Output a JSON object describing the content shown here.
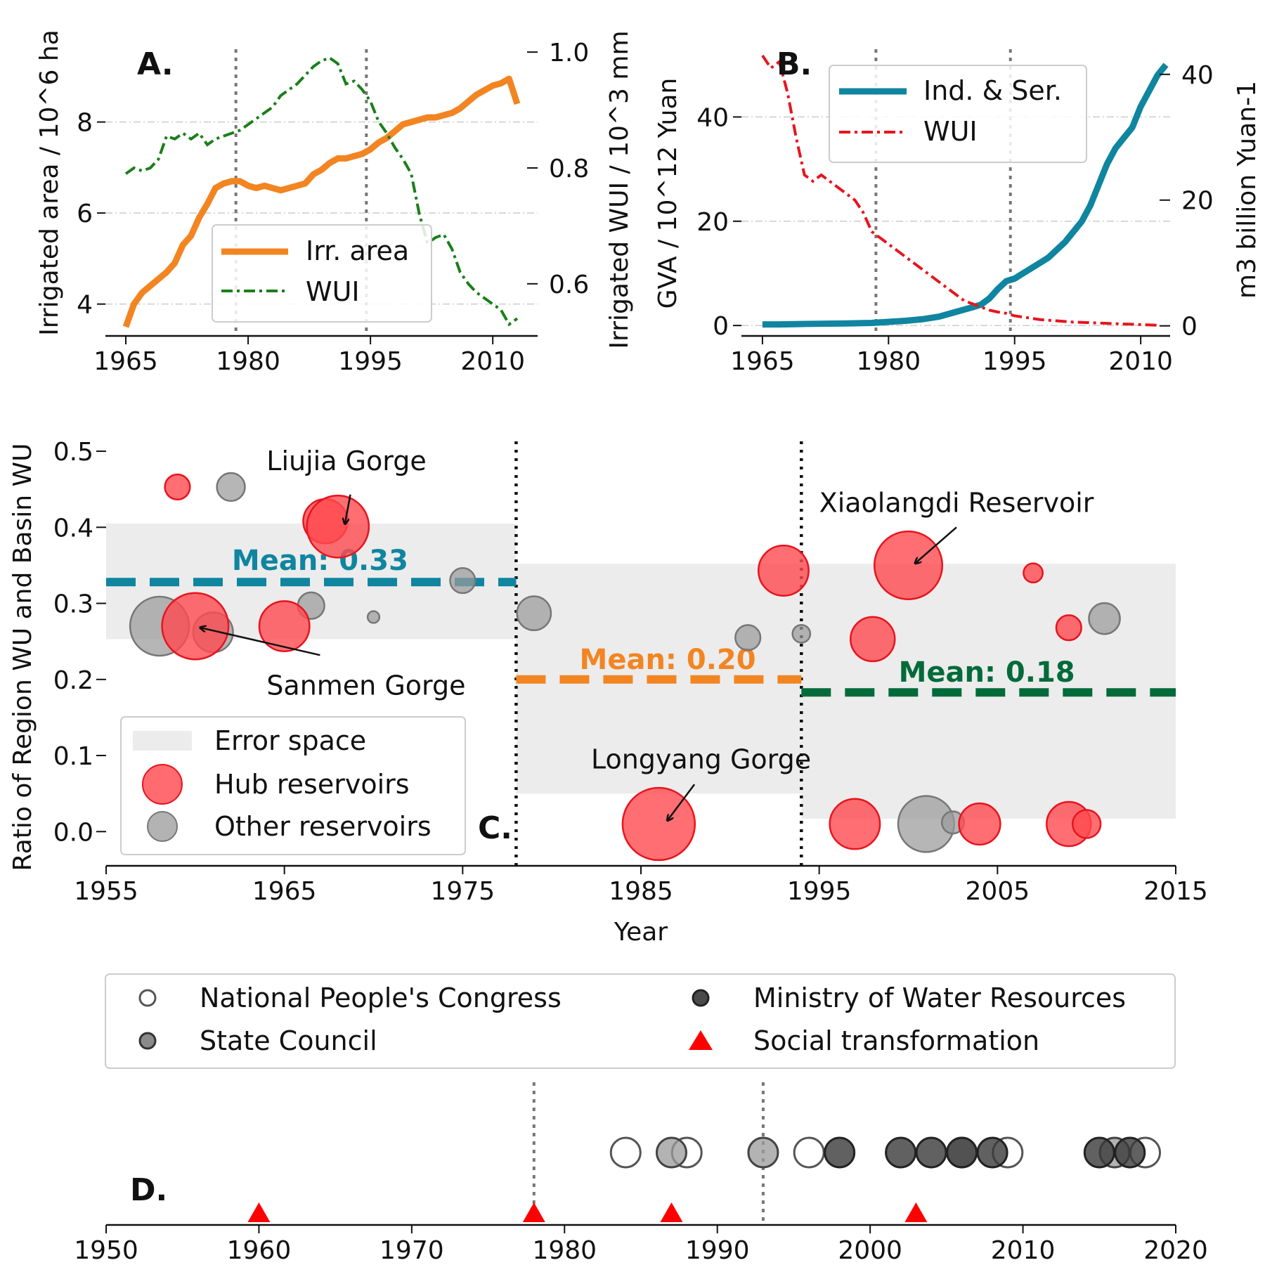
{
  "colors": {
    "orange": "#f28522",
    "green": "#1a7f1a",
    "teal": "#0f85a0",
    "red": "#e8141e",
    "darkgreen": "#036b3a",
    "gray": "#888888",
    "error_space": "#ececec"
  },
  "chart_data": [
    {
      "panel": "A.",
      "type": "line",
      "ylabel": "Irrigated area / 10^6 ha",
      "ylabel_right": "Irrigated WUI / 10^3 mm",
      "xlim": [
        1962.5,
        2015.5
      ],
      "ylim": [
        3.3,
        9.6
      ],
      "ylim_right": [
        0.51,
        1.005
      ],
      "xticks": [
        "1965",
        "1980",
        "1995",
        "2010"
      ],
      "yticks": [
        "4",
        "6",
        "8"
      ],
      "yticks_right": [
        "0.6",
        "0.8",
        "1.0"
      ],
      "vlines": [
        1978.5,
        1994.5
      ],
      "legend_position": "lower-right",
      "series": [
        {
          "name": "Irr. area",
          "axis": "left",
          "x": [
            1965,
            1966,
            1967,
            1968,
            1969,
            1970,
            1971,
            1972,
            1973,
            1974,
            1975,
            1976,
            1977,
            1978,
            1979,
            1980,
            1981,
            1982,
            1983,
            1984,
            1985,
            1986,
            1987,
            1988,
            1989,
            1990,
            1991,
            1992,
            1993,
            1994,
            1995,
            1996,
            1997,
            1998,
            1999,
            2000,
            2001,
            2002,
            2003,
            2004,
            2005,
            2006,
            2007,
            2008,
            2009,
            2010,
            2011,
            2012,
            2013
          ],
          "values": [
            3.5,
            4.0,
            4.25,
            4.4,
            4.55,
            4.7,
            4.9,
            5.3,
            5.5,
            5.9,
            6.2,
            6.55,
            6.65,
            6.7,
            6.7,
            6.6,
            6.55,
            6.6,
            6.55,
            6.5,
            6.55,
            6.6,
            6.65,
            6.85,
            6.95,
            7.1,
            7.2,
            7.2,
            7.25,
            7.3,
            7.4,
            7.55,
            7.65,
            7.8,
            7.95,
            8.0,
            8.05,
            8.1,
            8.1,
            8.15,
            8.2,
            8.3,
            8.45,
            8.6,
            8.7,
            8.8,
            8.85,
            8.95,
            8.4
          ]
        },
        {
          "name": "WUI",
          "axis": "right",
          "x": [
            1965,
            1966,
            1967,
            1968,
            1969,
            1970,
            1971,
            1972,
            1973,
            1974,
            1975,
            1976,
            1977,
            1978,
            1979,
            1980,
            1981,
            1982,
            1983,
            1984,
            1985,
            1986,
            1987,
            1988,
            1989,
            1990,
            1991,
            1992,
            1993,
            1994,
            1995,
            1996,
            1997,
            1998,
            1999,
            2000,
            2001,
            2002,
            2003,
            2004,
            2005,
            2006,
            2007,
            2008,
            2009,
            2010,
            2011,
            2012,
            2013
          ],
          "values": [
            0.79,
            0.8,
            0.795,
            0.8,
            0.815,
            0.855,
            0.85,
            0.86,
            0.85,
            0.86,
            0.84,
            0.85,
            0.855,
            0.86,
            0.865,
            0.875,
            0.885,
            0.895,
            0.905,
            0.925,
            0.935,
            0.945,
            0.96,
            0.975,
            0.985,
            0.99,
            0.98,
            0.945,
            0.95,
            0.935,
            0.915,
            0.88,
            0.86,
            0.835,
            0.815,
            0.79,
            0.72,
            0.67,
            0.68,
            0.685,
            0.66,
            0.62,
            0.6,
            0.585,
            0.575,
            0.565,
            0.555,
            0.53,
            0.54
          ]
        }
      ]
    },
    {
      "panel": "B.",
      "type": "line",
      "ylabel": "GVA / 10^12 Yuan",
      "ylabel_right": "m3 billion Yuan-1",
      "xlim": [
        1962.5,
        2013.5
      ],
      "ylim": [
        -2,
        53
      ],
      "ylim_right": [
        -1.6,
        44
      ],
      "xticks": [
        "1965",
        "1980",
        "1995",
        "2010"
      ],
      "yticks": [
        "0",
        "20",
        "40"
      ],
      "yticks_right": [
        "0",
        "20",
        "40"
      ],
      "vlines": [
        1978.5,
        1994.5
      ],
      "legend_position": "top-center",
      "series": [
        {
          "name": "Ind. & Ser.",
          "axis": "left",
          "x": [
            1965,
            1967,
            1970,
            1975,
            1978,
            1980,
            1982,
            1984,
            1986,
            1988,
            1990,
            1991,
            1992,
            1993,
            1994,
            1995,
            1996,
            1997,
            1998,
            1999,
            2000,
            2001,
            2002,
            2003,
            2004,
            2005,
            2006,
            2007,
            2008,
            2009,
            2010,
            2011,
            2012,
            2013
          ],
          "values": [
            0.2,
            0.2,
            0.3,
            0.4,
            0.5,
            0.7,
            0.9,
            1.2,
            1.7,
            2.6,
            3.5,
            4.0,
            5.2,
            7.0,
            8.5,
            9.0,
            10.0,
            11.0,
            12.0,
            13.0,
            14.5,
            16.0,
            18.0,
            20.0,
            23.0,
            27.0,
            31.0,
            34.0,
            36.0,
            38.0,
            42.0,
            45.0,
            48.0,
            50.0
          ]
        },
        {
          "name": "WUI",
          "axis": "right",
          "x": [
            1965,
            1966,
            1967,
            1968,
            1969,
            1970,
            1971,
            1972,
            1973,
            1974,
            1975,
            1976,
            1977,
            1978,
            1979,
            1980,
            1981,
            1982,
            1983,
            1984,
            1985,
            1986,
            1987,
            1988,
            1989,
            1990,
            1991,
            1992,
            1993,
            1994,
            1995,
            1996,
            1997,
            1998,
            2000,
            2002,
            2004,
            2006,
            2008,
            2010,
            2012
          ],
          "values": [
            43,
            41,
            42,
            37,
            30,
            24,
            23,
            24,
            23,
            22,
            21,
            20,
            18,
            15,
            14,
            13,
            12,
            11,
            10,
            9,
            8,
            7,
            6,
            5,
            4,
            3.5,
            3,
            2.5,
            2.2,
            2,
            1.6,
            1.4,
            1.2,
            1.0,
            0.8,
            0.6,
            0.5,
            0.4,
            0.3,
            0.2,
            0.1
          ]
        }
      ]
    },
    {
      "panel": "C.",
      "type": "scatter",
      "xlabel": "Year",
      "ylabel": "Ratio of Region WU and Basin WU",
      "xlim": [
        1955,
        2015
      ],
      "ylim": [
        -0.045,
        0.525
      ],
      "xticks": [
        "1955",
        "1965",
        "1975",
        "1985",
        "1995",
        "2005",
        "2015"
      ],
      "yticks": [
        "0.0",
        "0.1",
        "0.2",
        "0.3",
        "0.4",
        "0.5"
      ],
      "vlines": [
        1978,
        1994
      ],
      "error_bands": [
        {
          "x": [
            1955,
            1978
          ],
          "y": [
            0.253,
            0.405
          ]
        },
        {
          "x": [
            1978,
            1994
          ],
          "y": [
            0.05,
            0.352
          ]
        },
        {
          "x": [
            1994,
            2015
          ],
          "y": [
            0.017,
            0.352
          ]
        }
      ],
      "means": [
        {
          "label": "Mean: 0.33",
          "value": 0.328,
          "x": [
            1955,
            1978
          ],
          "color": "teal"
        },
        {
          "label": "Mean: 0.20",
          "value": 0.2,
          "x": [
            1978,
            1994
          ],
          "color": "orange"
        },
        {
          "label": "Mean: 0.18",
          "value": 0.183,
          "x": [
            1994,
            2015
          ],
          "color": "darkgreen"
        }
      ],
      "hub_reservoirs": [
        {
          "x": 1959,
          "y": 0.453,
          "size": 17
        },
        {
          "x": 1967.3,
          "y": 0.408,
          "size": 30
        },
        {
          "x": 1968,
          "y": 0.401,
          "size": 42
        },
        {
          "x": 1960,
          "y": 0.27,
          "size": 45
        },
        {
          "x": 1965,
          "y": 0.27,
          "size": 34
        },
        {
          "x": 1993,
          "y": 0.343,
          "size": 34
        },
        {
          "x": 2000,
          "y": 0.35,
          "size": 46
        },
        {
          "x": 2007,
          "y": 0.34,
          "size": 13
        },
        {
          "x": 1998,
          "y": 0.253,
          "size": 30
        },
        {
          "x": 2009,
          "y": 0.268,
          "size": 17
        },
        {
          "x": 1986,
          "y": 0.01,
          "size": 49
        },
        {
          "x": 1997,
          "y": 0.01,
          "size": 34
        },
        {
          "x": 2004,
          "y": 0.01,
          "size": 28
        },
        {
          "x": 2009,
          "y": 0.01,
          "size": 30
        },
        {
          "x": 2010,
          "y": 0.01,
          "size": 19
        }
      ],
      "other_reservoirs": [
        {
          "x": 1962,
          "y": 0.453,
          "size": 19
        },
        {
          "x": 1958,
          "y": 0.27,
          "size": 40
        },
        {
          "x": 1961,
          "y": 0.262,
          "size": 27
        },
        {
          "x": 1966.5,
          "y": 0.297,
          "size": 18
        },
        {
          "x": 1970,
          "y": 0.282,
          "size": 8
        },
        {
          "x": 1975,
          "y": 0.33,
          "size": 17
        },
        {
          "x": 1979,
          "y": 0.287,
          "size": 23
        },
        {
          "x": 1991,
          "y": 0.255,
          "size": 17
        },
        {
          "x": 1994,
          "y": 0.26,
          "size": 12
        },
        {
          "x": 2011,
          "y": 0.28,
          "size": 21
        },
        {
          "x": 2001,
          "y": 0.01,
          "size": 38
        },
        {
          "x": 2002.5,
          "y": 0.012,
          "size": 15
        }
      ],
      "annotations": [
        {
          "text": "Liujia Gorge",
          "x": 1964,
          "y": 0.475,
          "target": [
            1968.4,
            0.405
          ],
          "from": [
            1968.7,
            0.443
          ]
        },
        {
          "text": "Sanmen Gorge",
          "x": 1964,
          "y": 0.18,
          "target": [
            1960.3,
            0.268
          ],
          "from": [
            1967,
            0.232
          ]
        },
        {
          "text": "Xiaolangdi Reservoir",
          "x": 1995,
          "y": 0.42,
          "target": [
            2000.4,
            0.353
          ],
          "from": [
            2002.7,
            0.4
          ]
        },
        {
          "text": "Longyang Gorge",
          "x": 1982.2,
          "y": 0.083,
          "target": [
            1986.5,
            0.015
          ],
          "from": [
            1988,
            0.062
          ]
        }
      ]
    },
    {
      "panel": "D.",
      "type": "scatter",
      "xlim": [
        1950,
        2020
      ],
      "xticks": [
        "1950",
        "1960",
        "1970",
        "1980",
        "1990",
        "2000",
        "2010",
        "2020"
      ],
      "vlines": [
        1978,
        1993
      ],
      "series": [
        {
          "name": "National People's Congress",
          "x": [
            1984,
            1988,
            1996,
            2009,
            2018
          ],
          "fill": "none"
        },
        {
          "name": "State Council",
          "x": [
            1987,
            1993,
            2006,
            2016
          ],
          "fill": "#999999"
        },
        {
          "name": "Ministry of Water Resources",
          "x": [
            1998,
            2002,
            2004,
            2006,
            2008,
            2015,
            2017
          ],
          "fill": "#3a3a3a"
        },
        {
          "name": "Social transformation",
          "x": [
            1960,
            1978,
            1987,
            2003
          ],
          "fill": "#ff0000"
        }
      ]
    }
  ],
  "legends": {
    "a": [
      "Irr. area",
      "WUI"
    ],
    "b": [
      "Ind. & Ser.",
      "WUI"
    ],
    "c": [
      "Error space",
      "Hub reservoirs",
      "Other reservoirs"
    ],
    "d": [
      "National People's Congress",
      "State Council",
      "Ministry of Water Resources",
      "Social transformation"
    ]
  }
}
